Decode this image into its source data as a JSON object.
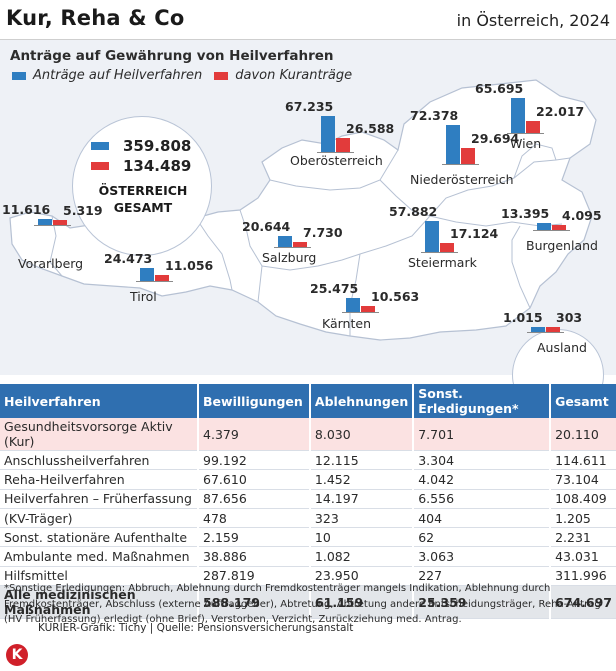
{
  "header": {
    "title": "Kur, Reha & Co",
    "region": "in Österreich, 2024"
  },
  "colors": {
    "blue": "#2f7ec1",
    "red": "#e23b3b",
    "table_header": "#2f6fb0",
    "highlight_row": "#fbe2e2",
    "map_fill": "#ffffff",
    "map_background": "#eef1f6"
  },
  "chart_data": {
    "type": "bar",
    "title": "Anträge auf Gewährung von Heilverfahren",
    "legend": [
      "Anträge auf Heilverfahren",
      "davon Kuranträge"
    ],
    "series": [
      {
        "name": "Anträge auf Heilverfahren",
        "color": "#2f7ec1"
      },
      {
        "name": "davon Kuranträge",
        "color": "#e23b3b"
      }
    ],
    "total": {
      "label_line1": "ÖSTERREICH",
      "label_line2": "GESAMT",
      "antraege": "359.808",
      "kur": "134.489"
    },
    "regions": [
      {
        "name": "Vorarlberg",
        "antraege": "11.616",
        "kur": "5.319",
        "antraege_value": 11616,
        "kur_value": 5319
      },
      {
        "name": "Tirol",
        "antraege": "24.473",
        "kur": "11.056",
        "antraege_value": 24473,
        "kur_value": 11056
      },
      {
        "name": "Salzburg",
        "antraege": "20.644",
        "kur": "7.730",
        "antraege_value": 20644,
        "kur_value": 7730
      },
      {
        "name": "Kärnten",
        "antraege": "25.475",
        "kur": "10.563",
        "antraege_value": 25475,
        "kur_value": 10563
      },
      {
        "name": "Oberösterreich",
        "antraege": "67.235",
        "kur": "26.588",
        "antraege_value": 67235,
        "kur_value": 26588
      },
      {
        "name": "Niederösterreich",
        "antraege": "72.378",
        "kur": "29.694",
        "antraege_value": 72378,
        "kur_value": 29694
      },
      {
        "name": "Wien",
        "antraege": "65.695",
        "kur": "22.017",
        "antraege_value": 65695,
        "kur_value": 22017
      },
      {
        "name": "Steiermark",
        "antraege": "57.882",
        "kur": "17.124",
        "antraege_value": 57882,
        "kur_value": 17124
      },
      {
        "name": "Burgenland",
        "antraege": "13.395",
        "kur": "4.095",
        "antraege_value": 13395,
        "kur_value": 4095
      },
      {
        "name": "Ausland",
        "antraege": "1.015",
        "kur": "303",
        "antraege_value": 1015,
        "kur_value": 303
      }
    ]
  },
  "table": {
    "headers": [
      "Heilverfahren",
      "Bewilligungen",
      "Ablehnungen",
      "Sonst. Erledigungen*",
      "Gesamt"
    ],
    "rows": [
      [
        "Gesundheitsvorsorge Aktiv (Kur)",
        "4.379",
        "8.030",
        "7.701",
        "20.110"
      ],
      [
        "Anschlussheilverfahren",
        "99.192",
        "12.115",
        "3.304",
        "114.611"
      ],
      [
        "Reha-Heilverfahren",
        "67.610",
        "1.452",
        "4.042",
        "73.104"
      ],
      [
        "Heilverfahren – Früherfassung",
        "87.656",
        "14.197",
        "6.556",
        "108.409"
      ],
      [
        "(KV-Träger)",
        "478",
        "323",
        "404",
        "1.205"
      ],
      [
        "Sonst. stationäre Aufenthalte",
        "2.159",
        "10",
        "62",
        "2.231"
      ],
      [
        "Ambulante med. Maßnahmen",
        "38.886",
        "1.082",
        "3.063",
        "43.031"
      ],
      [
        "Hilfsmittel",
        "287.819",
        "23.950",
        "227",
        "311.996"
      ]
    ],
    "total_row": [
      "Alle medizinischen Maßnahmen",
      "588.179",
      "61.159",
      "25.359",
      "674.697"
    ]
  },
  "footnote": "*Sonstige Erledigungen: Abbruch, Ablehnung durch Fremdkostenträger mangels Indikation, Ablehnung durch Fremdkostenträger, Abschluss (externe Auftraggeber), Abtretung, Abtretung andere Entscheidungsträger, Reha-Antrag (HV Früherfassung) erledigt (ohne Brief), Verstorben, Verzicht, Zurückziehung med. Antrag.",
  "credit": "KURIER-Grafik: Tichy | Quelle: Pensionsversicherungsanstalt",
  "logo_text": "K"
}
